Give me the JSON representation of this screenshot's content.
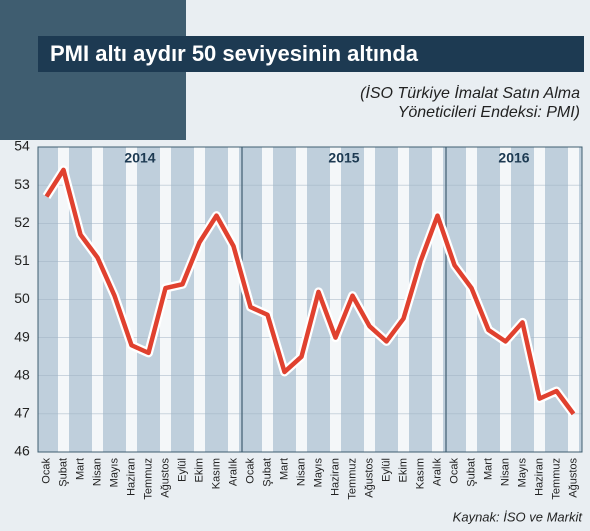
{
  "chart_data": {
    "type": "line",
    "title": "PMI altı aydır 50 seviyesinin altında",
    "subtitle": [
      "(İSO Türkiye İmalat Satın Alma",
      "Yöneticileri Endeksi: PMI)"
    ],
    "source": "Kaynak: İSO ve Markit",
    "year_labels": [
      "2014",
      "2015",
      "2016"
    ],
    "categories": [
      "Ocak",
      "Şubat",
      "Mart",
      "Nisan",
      "Mayıs",
      "Haziran",
      "Temmuz",
      "Ağustos",
      "Eylül",
      "Ekim",
      "Kasım",
      "Aralık",
      "Ocak",
      "Şubat",
      "Mart",
      "Nisan",
      "Mayıs",
      "Haziran",
      "Temmuz",
      "Ağustos",
      "Eylül",
      "Ekim",
      "Kasım",
      "Aralık",
      "Ocak",
      "Şubat",
      "Mart",
      "Nisan",
      "Mayıs",
      "Haziran",
      "Temmuz",
      "Ağustos"
    ],
    "values": [
      52.7,
      53.4,
      51.7,
      51.1,
      50.1,
      48.8,
      48.6,
      50.3,
      50.4,
      51.5,
      52.2,
      51.4,
      49.8,
      49.6,
      48.1,
      48.5,
      50.2,
      49.0,
      50.1,
      49.3,
      48.9,
      49.5,
      51.0,
      52.2,
      50.9,
      50.3,
      49.2,
      48.9,
      49.4,
      47.4,
      47.6,
      47.0
    ],
    "color": "#e0412f",
    "ylim": [
      46,
      54
    ],
    "yticks": [
      46,
      47,
      48,
      49,
      50,
      51,
      52,
      53,
      54
    ],
    "grid": true
  }
}
